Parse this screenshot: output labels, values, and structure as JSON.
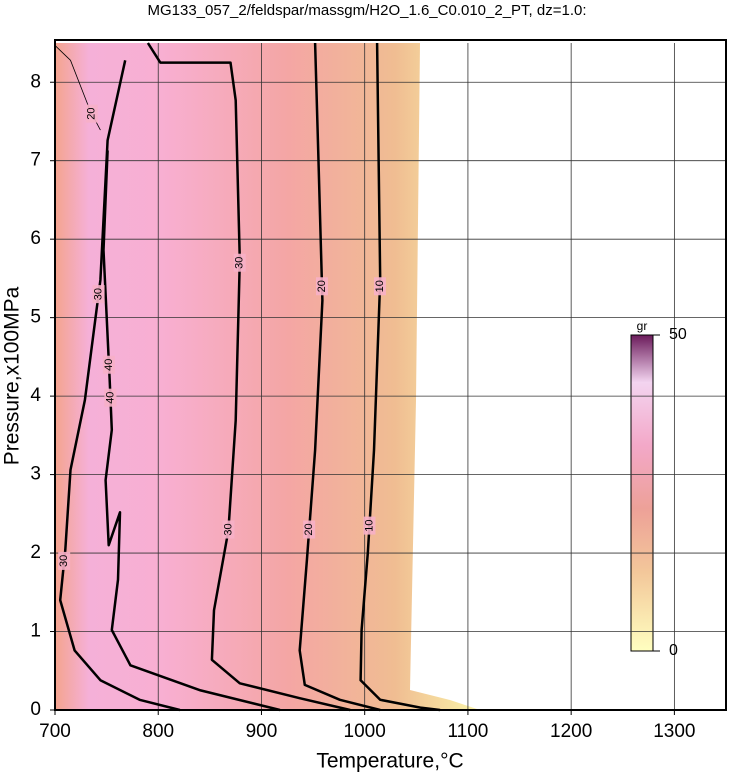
{
  "chart_data": {
    "type": "contour",
    "title": "MG133_057_2/feldspar/massgm/H2O_1.6_C0.010_2_PT, dz=1.0:",
    "x_label": "Temperature,°C",
    "y_label": "Pressure,x100MPa",
    "xlim": [
      700,
      1350
    ],
    "xticks": [
      700,
      800,
      900,
      1000,
      1100,
      1200,
      1300
    ],
    "ylim": [
      0,
      8.5
    ],
    "yticks": [
      0,
      1,
      2,
      3,
      4,
      5,
      6,
      7,
      8
    ],
    "grid": true,
    "colorbar": {
      "label": "gr",
      "lim": [
        0,
        50
      ],
      "ticks": [
        0,
        50
      ]
    },
    "series": [
      {
        "level": 10,
        "x": [
          1012,
          1013,
          1015,
          1009,
          1003,
          997,
          996,
          1015,
          1054,
          1073
        ],
        "y": [
          8.5,
          7.52,
          5.48,
          3.31,
          2.0,
          1.02,
          0.38,
          0.13,
          0.03,
          0
        ]
      },
      {
        "level": 20,
        "x": [
          952,
          955,
          959,
          952,
          944,
          937,
          942,
          976,
          1015
        ],
        "y": [
          8.5,
          7.13,
          5.22,
          3.31,
          1.91,
          0.76,
          0.32,
          0.13,
          0
        ]
      },
      {
        "level": 30,
        "x": [
          790,
          802,
          870,
          875,
          879,
          875,
          868,
          854,
          852,
          879,
          937,
          986
        ],
        "y": [
          8.5,
          8.25,
          8.25,
          7.77,
          5.73,
          3.69,
          2.29,
          1.27,
          0.64,
          0.34,
          0.15,
          0
        ]
      },
      {
        "level": 30,
        "x": [
          768,
          751,
          744,
          729,
          715,
          710,
          705,
          719,
          744,
          782,
          821
        ],
        "y": [
          8.28,
          7.26,
          5.48,
          3.95,
          3.06,
          2.04,
          1.4,
          0.76,
          0.38,
          0.13,
          0
        ]
      },
      {
        "level": 40,
        "x": [
          751,
          747,
          753,
          755,
          749,
          752,
          763,
          761,
          755,
          773,
          841,
          918
        ],
        "y": [
          7.13,
          5.86,
          4.2,
          3.57,
          2.93,
          2.1,
          2.52,
          1.66,
          1.02,
          0.57,
          0.25,
          0
        ]
      },
      {
        "level": 20,
        "x": [
          700,
          715,
          734,
          744
        ],
        "y": [
          8.47,
          8.28,
          7.64,
          7.39
        ]
      }
    ]
  }
}
